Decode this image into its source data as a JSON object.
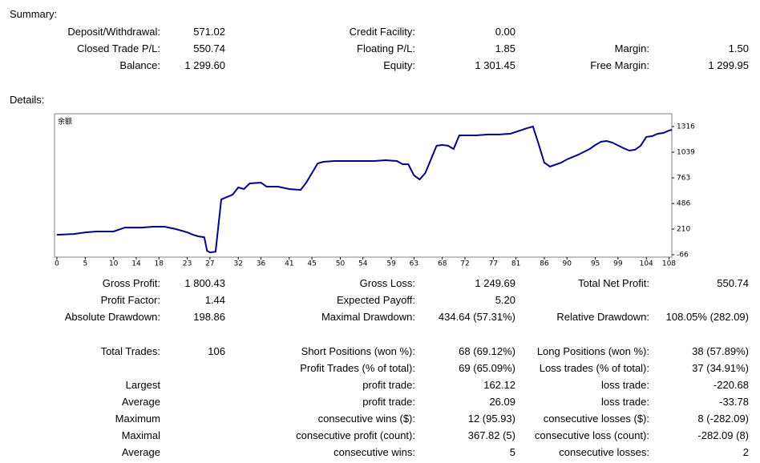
{
  "summary": {
    "title": "Summary:",
    "rows": [
      [
        {
          "label": "Deposit/Withdrawal:",
          "value": "571.02"
        },
        {
          "label": "Credit Facility:",
          "value": "0.00"
        },
        null
      ],
      [
        {
          "label": "Closed Trade P/L:",
          "value": "550.74"
        },
        {
          "label": "Floating P/L:",
          "value": "1.85"
        },
        {
          "label": "Margin:",
          "value": "1.50"
        }
      ],
      [
        {
          "label": "Balance:",
          "value": "1 299.60"
        },
        {
          "label": "Equity:",
          "value": "1 301.45"
        },
        {
          "label": "Free Margin:",
          "value": "1 299.95"
        }
      ]
    ]
  },
  "details": {
    "title": "Details:",
    "stats": [
      [
        {
          "label": "Gross Profit:",
          "value": "1 800.43"
        },
        {
          "label": "Gross Loss:",
          "value": "1 249.69"
        },
        {
          "label": "Total Net Profit:",
          "value": "550.74"
        }
      ],
      [
        {
          "label": "Profit Factor:",
          "value": "1.44"
        },
        {
          "label": "Expected Payoff:",
          "value": "5.20"
        },
        null
      ],
      [
        {
          "label": "Absolute Drawdown:",
          "value": "198.86"
        },
        {
          "label": "Maximal Drawdown:",
          "value": "434.64 (57.31%)"
        },
        {
          "label": "Relative Drawdown:",
          "value": "108.05% (282.09)"
        }
      ]
    ],
    "trades": [
      [
        {
          "label": "Total Trades:",
          "value": "106"
        },
        {
          "label": "Short Positions (won %):",
          "value": "68 (69.12%)"
        },
        {
          "label": "Long Positions (won %):",
          "value": "38 (57.89%)"
        }
      ],
      [
        null,
        {
          "label": "Profit Trades (% of total):",
          "value": "69 (65.09%)"
        },
        {
          "label": "Loss trades (% of total):",
          "value": "37 (34.91%)"
        }
      ],
      [
        {
          "label": "Largest"
        },
        {
          "label": "profit trade:",
          "value": "162.12"
        },
        {
          "label": "loss trade:",
          "value": "-220.68"
        }
      ],
      [
        {
          "label": "Average"
        },
        {
          "label": "profit trade:",
          "value": "26.09"
        },
        {
          "label": "loss trade:",
          "value": "-33.78"
        }
      ],
      [
        {
          "label": "Maximum"
        },
        {
          "label": "consecutive wins ($):",
          "value": "12 (95.93)"
        },
        {
          "label": "consecutive losses ($):",
          "value": "8 (-282.09)"
        }
      ],
      [
        {
          "label": "Maximal"
        },
        {
          "label": "consecutive profit (count):",
          "value": "367.82 (5)"
        },
        {
          "label": "consecutive loss (count):",
          "value": "-282.09 (8)"
        }
      ],
      [
        {
          "label": "Average"
        },
        {
          "label": "consecutive wins:",
          "value": "5"
        },
        {
          "label": "consecutive losses:",
          "value": "2"
        }
      ]
    ]
  },
  "chart_data": {
    "type": "line",
    "x": [
      0,
      3,
      5,
      7,
      10,
      12,
      15,
      17,
      19,
      21,
      23,
      24,
      25,
      26,
      26.5,
      27,
      28,
      29,
      31,
      32,
      33,
      34,
      36,
      37,
      39,
      41,
      43,
      44,
      46,
      47,
      49,
      52,
      56,
      58,
      60,
      61,
      62,
      63,
      64,
      65,
      67,
      68,
      69,
      70,
      71,
      74,
      76,
      78,
      80,
      83,
      84,
      85,
      86,
      87,
      89,
      90,
      92,
      94,
      95,
      96,
      97,
      98,
      100,
      101,
      102,
      103,
      104,
      105,
      106,
      107,
      108,
      108.5
    ],
    "series": [
      {
        "name": "余额",
        "color": "#00008b",
        "values": [
          149,
          158,
          175,
          184,
          184,
          227,
          227,
          236,
          236,
          210,
          175,
          149,
          132,
          123,
          -24,
          -41,
          -33,
          530,
          581,
          659,
          642,
          703,
          711,
          668,
          668,
          642,
          633,
          711,
          918,
          936,
          944,
          944,
          944,
          953,
          944,
          910,
          910,
          789,
          746,
          815,
          1109,
          1117,
          1109,
          1074,
          1221,
          1221,
          1230,
          1230,
          1238,
          1299,
          1316,
          1126,
          927,
          884,
          927,
          962,
          1013,
          1074,
          1117,
          1152,
          1160,
          1143,
          1083,
          1057,
          1066,
          1109,
          1204,
          1212,
          1238,
          1247,
          1273,
          1281
        ]
      }
    ],
    "xlim": [
      0,
      108.5
    ],
    "ylim": [
      -92,
      1454
    ],
    "xticks": [
      0,
      5,
      10,
      14,
      18,
      23,
      27,
      32,
      36,
      41,
      45,
      50,
      54,
      59,
      63,
      68,
      72,
      77,
      81,
      86,
      90,
      95,
      99,
      104,
      108
    ],
    "yticks": [
      -66,
      210,
      486,
      763,
      1039,
      1316
    ]
  }
}
